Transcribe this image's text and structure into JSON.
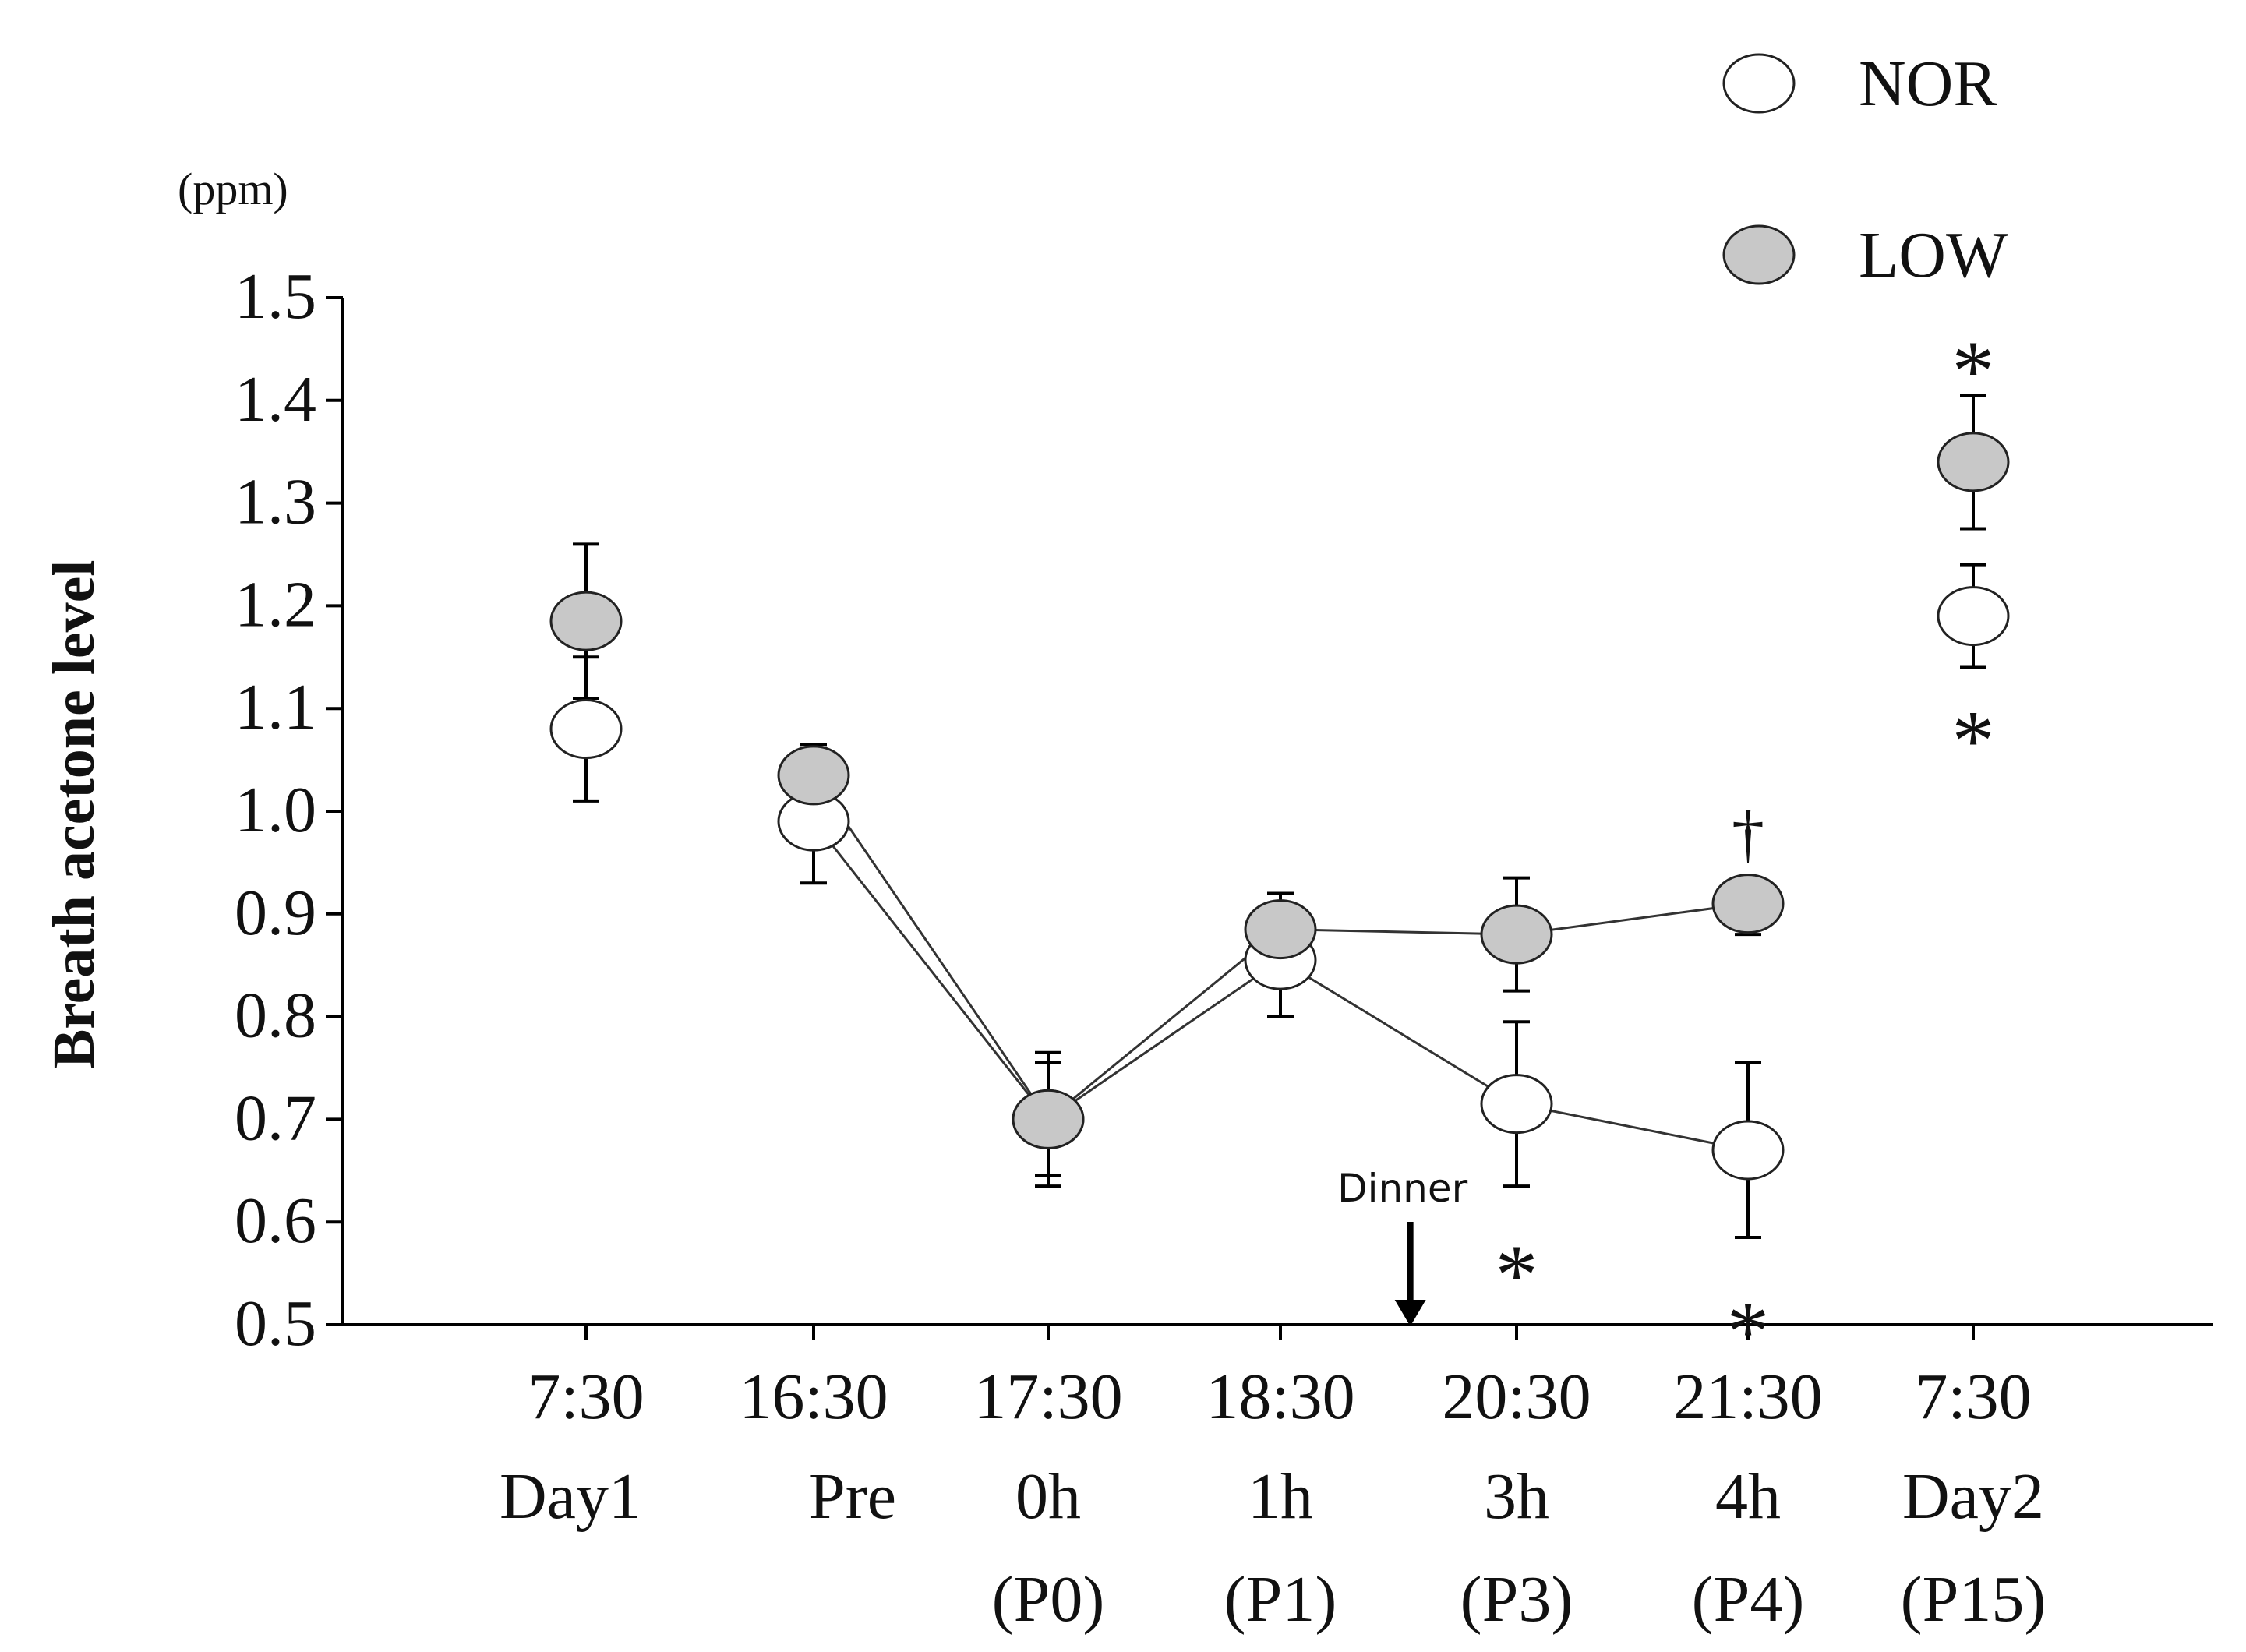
{
  "chart_data": {
    "type": "scatter",
    "title": "",
    "unit_label": "(ppm)",
    "ylabel": "Breath acetone level",
    "xlabel": "",
    "ylim": [
      0.5,
      1.5
    ],
    "yticks": [
      "1.5",
      "1.4",
      "1.3",
      "1.2",
      "1.1",
      "1.0",
      "0.9",
      "0.8",
      "0.7",
      "0.6",
      "0.5"
    ],
    "categories": [
      {
        "time": "7:30",
        "label": "Day1",
        "sub": ""
      },
      {
        "time": "16:30",
        "label": "Pre",
        "sub": ""
      },
      {
        "time": "17:30",
        "label": "0h",
        "sub": "(P0)"
      },
      {
        "time": "18:30",
        "label": "1h",
        "sub": "(P1)"
      },
      {
        "time": "20:30",
        "label": "3h",
        "sub": "(P3)"
      },
      {
        "time": "21:30",
        "label": "4h",
        "sub": "(P4)"
      },
      {
        "time": "7:30",
        "label": "Day2",
        "sub": "(P15)"
      }
    ],
    "series": [
      {
        "name": "NOR",
        "fill": "#ffffff",
        "values": [
          1.08,
          0.99,
          0.7,
          0.855,
          0.715,
          0.67,
          1.19
        ],
        "errors": [
          0.07,
          0.06,
          0.065,
          0.055,
          0.08,
          0.085,
          0.05
        ],
        "err_dir": [
          "both",
          "down",
          "both",
          "down",
          "both",
          "both",
          "both"
        ],
        "connect": [
          false,
          true,
          true,
          true,
          true,
          true,
          false
        ]
      },
      {
        "name": "LOW",
        "fill": "#c8c8c8",
        "values": [
          1.185,
          1.035,
          0.7,
          0.885,
          0.88,
          0.91,
          1.34
        ],
        "errors": [
          0.075,
          0.03,
          0.055,
          0.035,
          0.055,
          0.03,
          0.065
        ],
        "err_dir": [
          "both",
          "up",
          "both",
          "up",
          "both",
          "down",
          "both"
        ],
        "connect": [
          false,
          true,
          true,
          true,
          true,
          true,
          false
        ]
      }
    ],
    "annotations": {
      "dinner": {
        "text": "Dinner",
        "x_index": 3.55
      },
      "marks": [
        {
          "text": "*",
          "x_index": 6,
          "value": 1.44
        },
        {
          "text": "*",
          "x_index": 6,
          "value": 1.08
        },
        {
          "text": "†",
          "x_index": 5,
          "value": 0.98
        },
        {
          "text": "*",
          "x_index": 4,
          "value": 0.56
        },
        {
          "text": "*",
          "x_index": 5,
          "value": 0.505
        }
      ]
    },
    "legend": {
      "position": "top-right",
      "entries": [
        "NOR",
        "LOW"
      ]
    }
  }
}
